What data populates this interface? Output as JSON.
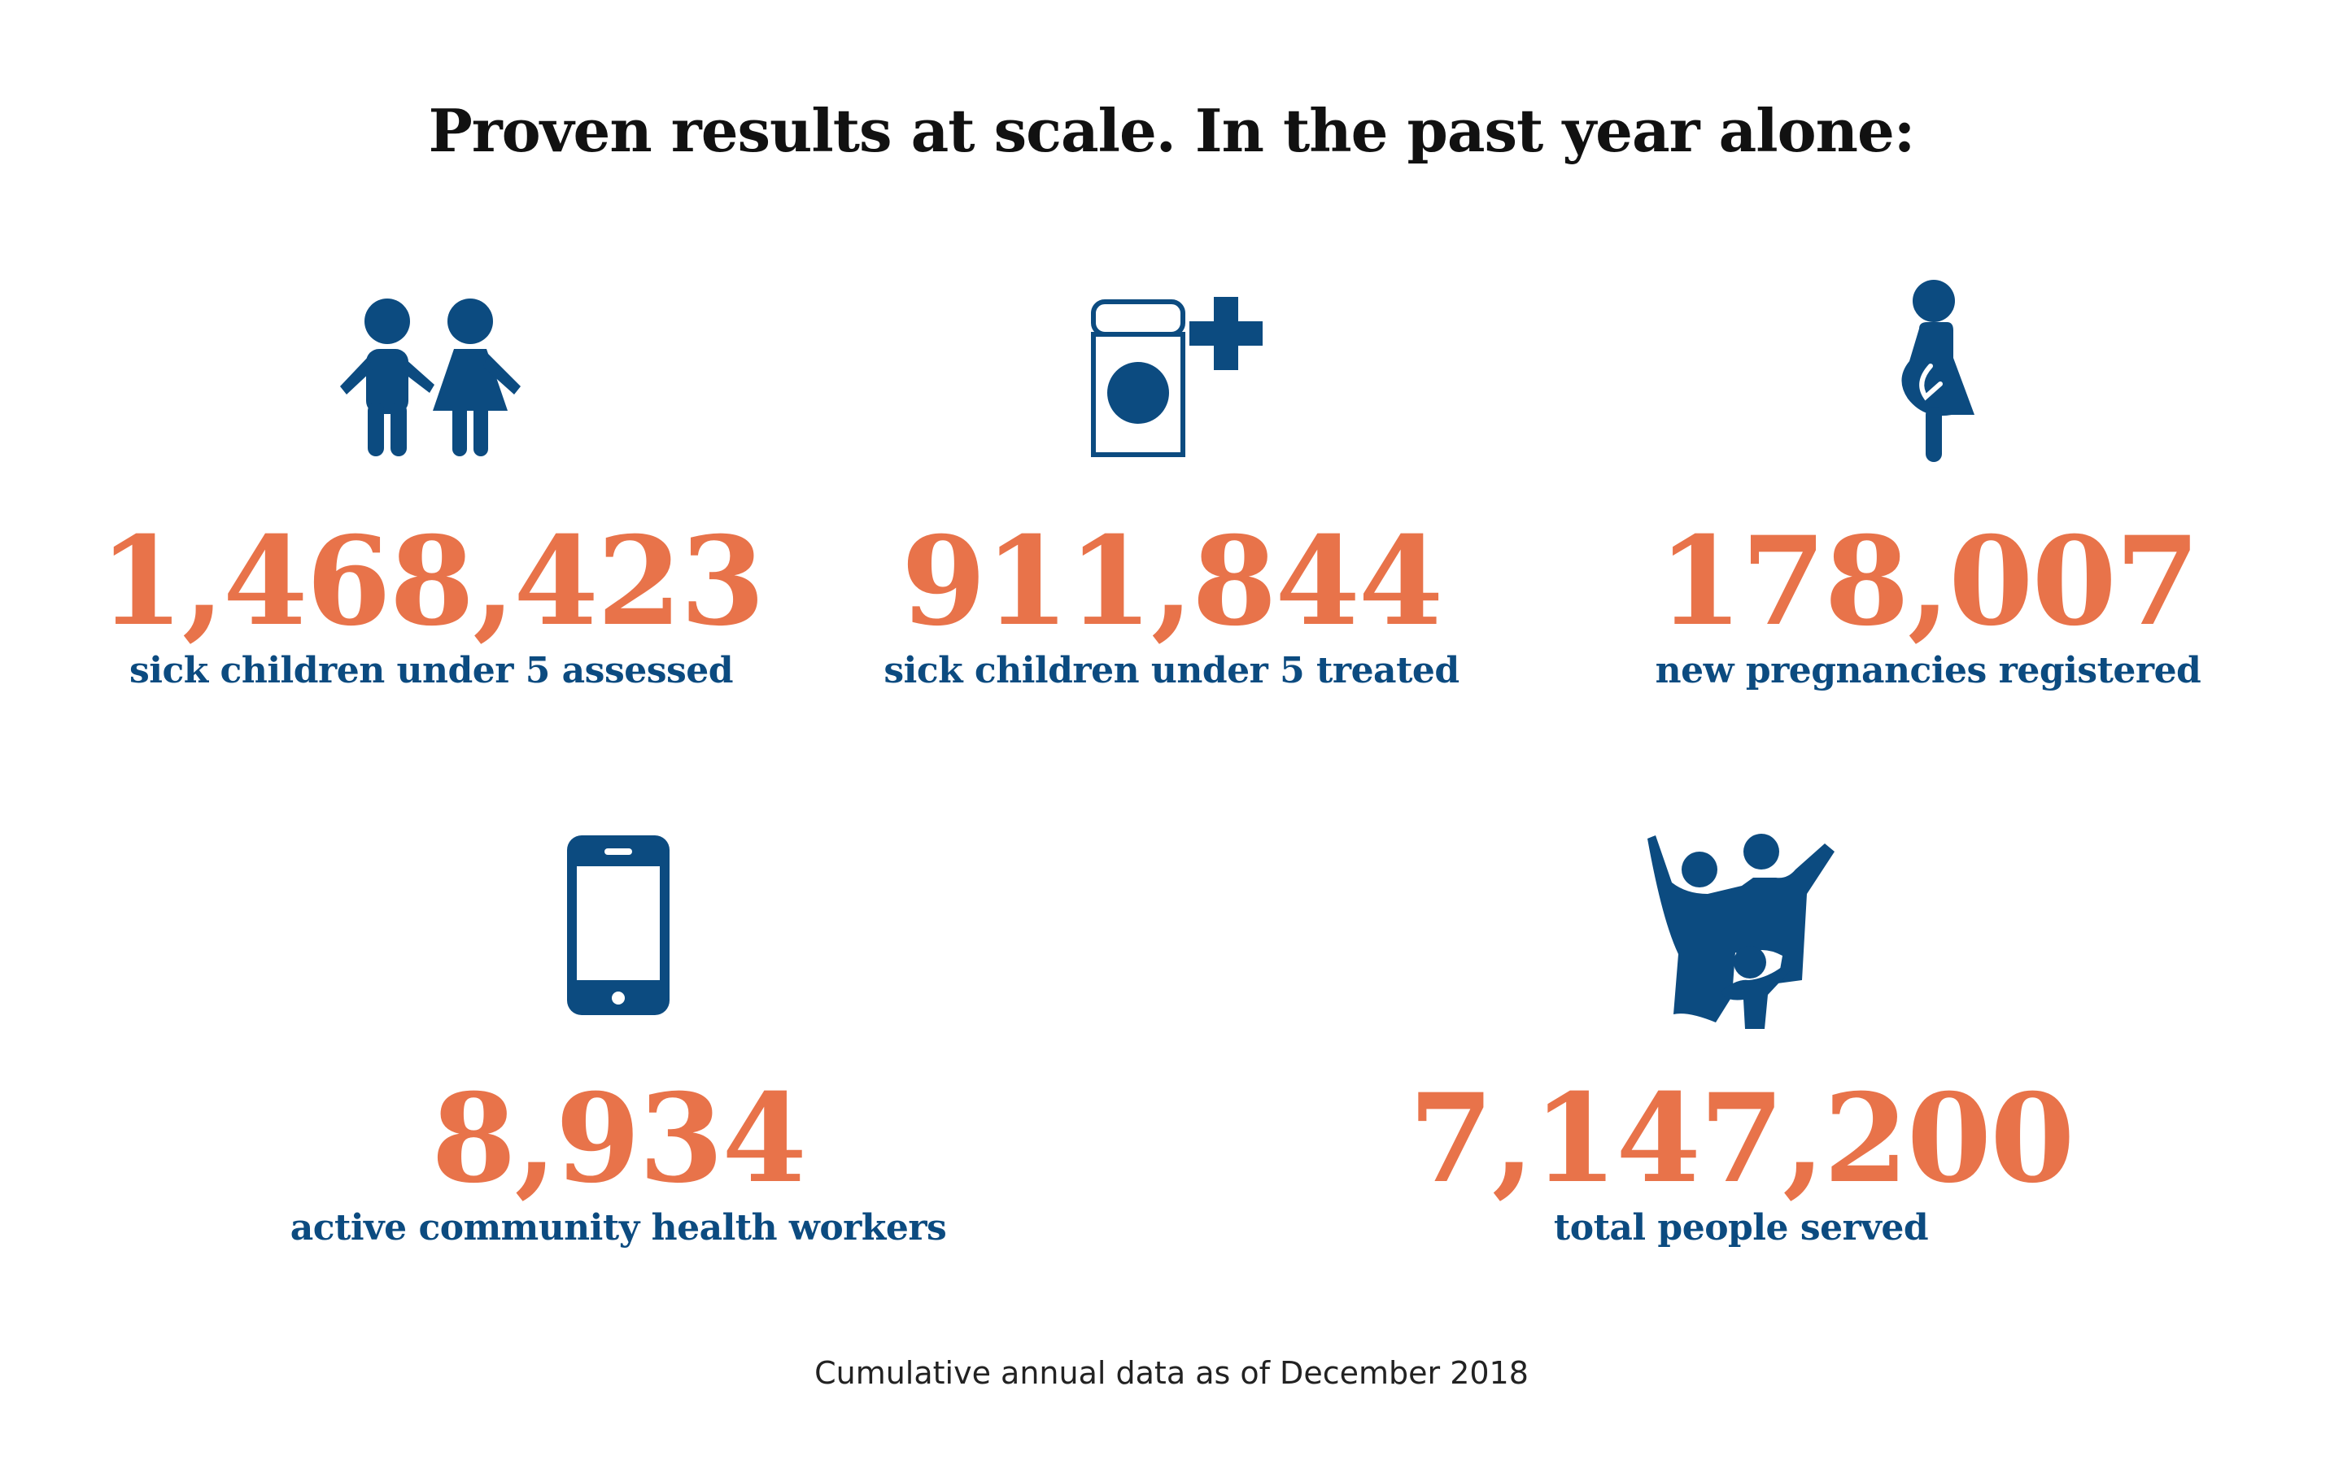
{
  "title": "Proven results at scale. In the past year alone:",
  "accent_color": "#e8734a",
  "icon_color": "#0c4b80",
  "stats": [
    {
      "value": "1,468,423",
      "label": "sick children under 5 assessed",
      "icon": "children-icon"
    },
    {
      "value": "911,844",
      "label": "sick children under 5 treated",
      "icon": "medicine-icon"
    },
    {
      "value": "178,007",
      "label": "new pregnancies registered",
      "icon": "pregnant-woman-icon"
    },
    {
      "value": "8,934",
      "label": "active community health workers",
      "icon": "mobile-phone-icon"
    },
    {
      "value": "7,147,200",
      "label": "total people served",
      "icon": "family-icon"
    }
  ],
  "footnote": "Cumulative annual data as of December 2018"
}
